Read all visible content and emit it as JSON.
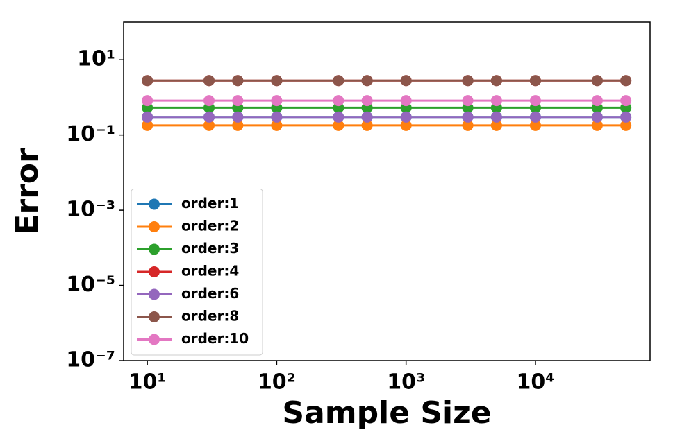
{
  "chart_data": {
    "type": "line",
    "x_label": "Sample Size",
    "y_label": "Error",
    "x": [
      10,
      30,
      50,
      100,
      300,
      500,
      1000,
      3000,
      5000,
      10000,
      30000,
      50000
    ],
    "xscale": "log",
    "yscale": "log",
    "xlim": [
      6.56,
      76900
    ],
    "ylim": [
      1e-07,
      100
    ],
    "xticks": [
      {
        "value": 10,
        "label": "10¹"
      },
      {
        "value": 100,
        "label": "10²"
      },
      {
        "value": 1000,
        "label": "10³"
      },
      {
        "value": 10000,
        "label": "10⁴"
      }
    ],
    "yticks": [
      {
        "value": 1e-07,
        "label": "10⁻⁷"
      },
      {
        "value": 1e-05,
        "label": "10⁻⁵"
      },
      {
        "value": 0.001,
        "label": "10⁻³"
      },
      {
        "value": 0.1,
        "label": "10⁻¹"
      },
      {
        "value": 10,
        "label": "10¹"
      }
    ],
    "legend": "lower left",
    "series": [
      {
        "name": "order:1",
        "color": "#1f77b4",
        "values": [
          0.3,
          0.3,
          0.3,
          0.3,
          0.3,
          0.3,
          0.3,
          0.3,
          0.3,
          0.3,
          0.3,
          0.3
        ]
      },
      {
        "name": "order:2",
        "color": "#ff7f0e",
        "values": [
          0.18,
          0.18,
          0.18,
          0.18,
          0.18,
          0.18,
          0.18,
          0.18,
          0.18,
          0.18,
          0.18,
          0.18
        ]
      },
      {
        "name": "order:3",
        "color": "#2ca02c",
        "values": [
          0.53,
          0.53,
          0.53,
          0.53,
          0.53,
          0.53,
          0.53,
          0.53,
          0.53,
          0.53,
          0.53,
          0.53
        ]
      },
      {
        "name": "order:4",
        "color": "#d62728",
        "values": [
          2.8,
          2.8,
          2.8,
          2.8,
          2.8,
          2.8,
          2.8,
          2.8,
          2.8,
          2.8,
          2.8,
          2.8
        ]
      },
      {
        "name": "order:6",
        "color": "#9467bd",
        "values": [
          0.3,
          0.3,
          0.3,
          0.3,
          0.3,
          0.3,
          0.3,
          0.3,
          0.3,
          0.3,
          0.3,
          0.3
        ]
      },
      {
        "name": "order:8",
        "color": "#8c564b",
        "values": [
          2.8,
          2.8,
          2.8,
          2.8,
          2.8,
          2.8,
          2.8,
          2.8,
          2.8,
          2.8,
          2.8,
          2.8
        ]
      },
      {
        "name": "order:10",
        "color": "#e377c2",
        "values": [
          0.82,
          0.82,
          0.82,
          0.82,
          0.82,
          0.82,
          0.82,
          0.82,
          0.82,
          0.82,
          0.82,
          0.82
        ]
      }
    ]
  }
}
